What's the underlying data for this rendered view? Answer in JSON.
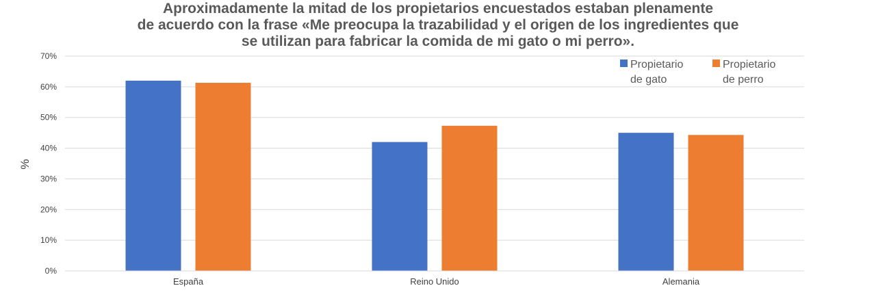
{
  "chart_data": {
    "type": "bar",
    "title_lines": [
      "Aproximadamente la mitad de los propietarios encuestados estaban plenamente",
      "de acuerdo con la frase «Me preocupa la trazabilidad y el origen de los ingredientes que",
      "se utilizan para fabricar la comida de mi gato o mi perro»."
    ],
    "xlabel": "",
    "ylabel": "%",
    "ylim": [
      0,
      70
    ],
    "yticks": [
      "0%",
      "10%",
      "20%",
      "30%",
      "40%",
      "50%",
      "60%",
      "70%"
    ],
    "grid": true,
    "legend_position": "top-right",
    "categories": [
      "España",
      "Reino Unido",
      "Alemania"
    ],
    "series": [
      {
        "name_lines": [
          "Propietario",
          "de gato"
        ],
        "color": "#4472C4",
        "values": [
          62,
          42,
          45
        ]
      },
      {
        "name_lines": [
          "Propietario",
          "de perro"
        ],
        "color": "#ED7D31",
        "values": [
          61.3,
          47.3,
          44.3
        ]
      }
    ]
  }
}
